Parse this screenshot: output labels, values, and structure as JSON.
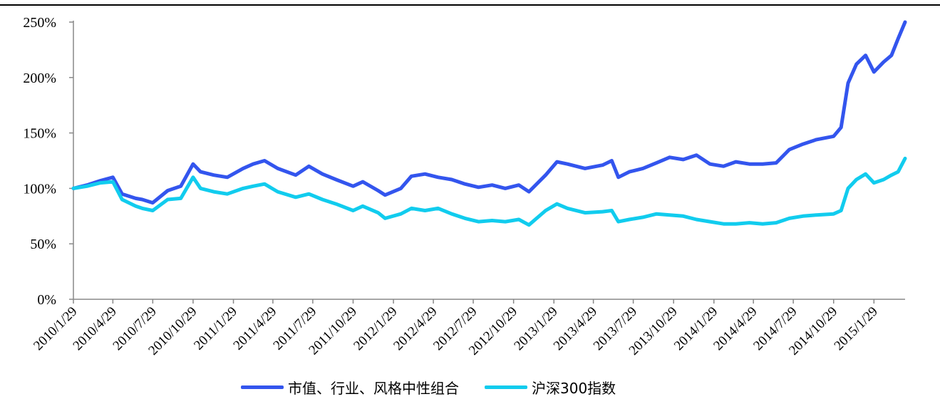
{
  "chart_data": {
    "type": "line",
    "title": "",
    "xlabel": "",
    "ylabel": "",
    "ylim": [
      0,
      250
    ],
    "y_ticks": [
      0,
      50,
      100,
      150,
      200,
      250
    ],
    "y_tick_labels": [
      "0%",
      "50%",
      "100%",
      "150%",
      "200%",
      "250%"
    ],
    "x_tick_labels": [
      "2010/1/29",
      "2010/4/29",
      "2010/7/29",
      "2010/10/29",
      "2011/1/29",
      "2011/4/29",
      "2011/7/29",
      "2011/10/29",
      "2012/1/29",
      "2012/4/29",
      "2012/7/29",
      "2012/10/29",
      "2013/1/29",
      "2013/4/29",
      "2013/7/29",
      "2013/10/29",
      "2014/1/29",
      "2014/4/29",
      "2014/7/29",
      "2014/10/29",
      "2015/1/29"
    ],
    "grid": false,
    "legend_position": "bottom",
    "x": [
      "2010-01-29",
      "2010-03-01",
      "2010-04-01",
      "2010-04-29",
      "2010-05-20",
      "2010-06-20",
      "2010-07-05",
      "2010-07-29",
      "2010-09-01",
      "2010-10-01",
      "2010-10-29",
      "2010-11-15",
      "2010-12-15",
      "2011-01-15",
      "2011-02-20",
      "2011-03-15",
      "2011-04-10",
      "2011-05-10",
      "2011-06-20",
      "2011-07-20",
      "2011-08-20",
      "2011-09-20",
      "2011-10-29",
      "2011-11-20",
      "2011-12-25",
      "2012-01-10",
      "2012-02-15",
      "2012-03-10",
      "2012-04-10",
      "2012-05-10",
      "2012-06-10",
      "2012-07-10",
      "2012-08-10",
      "2012-09-10",
      "2012-10-10",
      "2012-11-10",
      "2012-12-03",
      "2013-01-10",
      "2013-02-05",
      "2013-03-01",
      "2013-04-10",
      "2013-05-20",
      "2013-06-10",
      "2013-06-25",
      "2013-07-20",
      "2013-08-20",
      "2013-09-20",
      "2013-10-20",
      "2013-11-20",
      "2013-12-20",
      "2014-01-20",
      "2014-02-20",
      "2014-03-20",
      "2014-04-20",
      "2014-05-20",
      "2014-06-20",
      "2014-07-20",
      "2014-08-20",
      "2014-09-20",
      "2014-10-29",
      "2014-11-15",
      "2014-12-01",
      "2014-12-20",
      "2015-01-10",
      "2015-01-29",
      "2015-02-20",
      "2015-03-10",
      "2015-03-25",
      "2015-04-10"
    ],
    "series": [
      {
        "name": "市值、行业、风格中性组合",
        "color": "#3355EE",
        "values": [
          100,
          103,
          107,
          110,
          95,
          91,
          90,
          87,
          98,
          102,
          122,
          115,
          112,
          110,
          118,
          122,
          125,
          118,
          112,
          120,
          113,
          108,
          102,
          106,
          98,
          94,
          100,
          111,
          113,
          110,
          108,
          104,
          101,
          103,
          100,
          103,
          97,
          112,
          124,
          122,
          118,
          121,
          125,
          110,
          115,
          118,
          123,
          128,
          126,
          130,
          122,
          120,
          124,
          122,
          122,
          123,
          135,
          140,
          144,
          147,
          155,
          195,
          212,
          220,
          205,
          214,
          220,
          235,
          250
        ]
      },
      {
        "name": "沪深300指数",
        "color": "#11CCEE",
        "values": [
          100,
          102,
          105,
          106,
          90,
          84,
          82,
          80,
          90,
          91,
          110,
          100,
          97,
          95,
          100,
          102,
          104,
          97,
          92,
          95,
          90,
          86,
          80,
          84,
          78,
          73,
          77,
          82,
          80,
          82,
          77,
          73,
          70,
          71,
          70,
          72,
          67,
          80,
          86,
          82,
          78,
          79,
          80,
          70,
          72,
          74,
          77,
          76,
          75,
          72,
          70,
          68,
          68,
          69,
          68,
          69,
          73,
          75,
          76,
          77,
          80,
          100,
          108,
          113,
          105,
          108,
          112,
          115,
          127
        ]
      }
    ]
  },
  "legend": {
    "items": [
      {
        "label": "市值、行业、风格中性组合",
        "color": "#3355EE"
      },
      {
        "label": "沪深300指数",
        "color": "#11CCEE"
      }
    ]
  }
}
